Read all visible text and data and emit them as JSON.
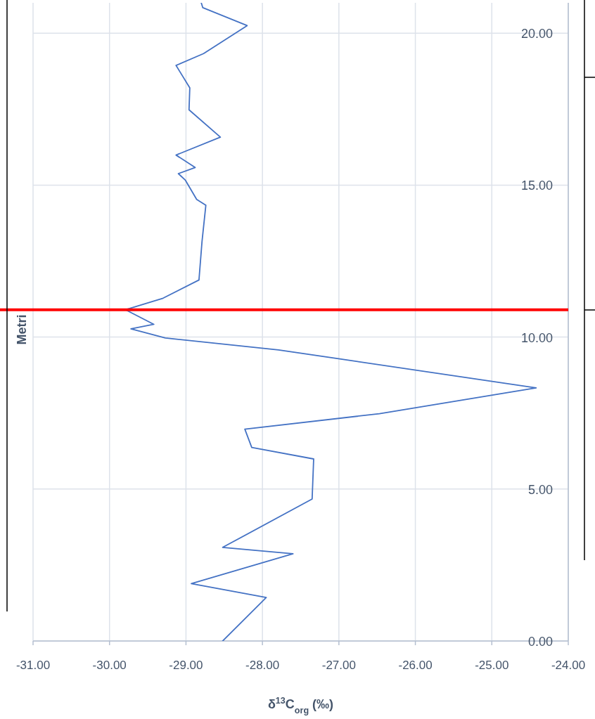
{
  "chart_data": {
    "type": "line",
    "xlabel": "δ$^{13}$C$_{org}$ (‰)",
    "ylabel": "Metri",
    "xlim": [
      -31,
      -24
    ],
    "xticks": [
      {
        "value": -31,
        "label": "-31.00"
      },
      {
        "value": -30,
        "label": "-30.00"
      },
      {
        "value": -29,
        "label": "-29.00"
      },
      {
        "value": -28,
        "label": "-28.00"
      },
      {
        "value": -27,
        "label": "-27.00"
      },
      {
        "value": -26,
        "label": "-26.00"
      },
      {
        "value": -25,
        "label": "-25.00"
      },
      {
        "value": -24,
        "label": "-24.00"
      }
    ],
    "ylim": [
      0,
      21
    ],
    "yticks": [
      {
        "value": 0,
        "label": "0.00"
      },
      {
        "value": 5,
        "label": "5.00"
      },
      {
        "value": 10,
        "label": "10.00"
      },
      {
        "value": 15,
        "label": "15.00"
      },
      {
        "value": 20,
        "label": "20.00"
      }
    ],
    "grid": true,
    "marker": "none",
    "line_style": "solid",
    "series": [
      {
        "color": "#4472c4",
        "x": [
          -28.52,
          -27.95,
          -28.93,
          -27.6,
          -28.52,
          -27.35,
          -27.33,
          -28.14,
          -28.23,
          -26.47,
          -24.42,
          -27.79,
          -29.27,
          -29.72,
          -29.42,
          -29.79,
          -29.3,
          -28.83,
          -28.79,
          -28.74,
          -28.86,
          -29.01,
          -29.1,
          -28.88,
          -29.13,
          -28.55,
          -28.96,
          -28.95,
          -29.13,
          -28.77,
          -28.2,
          -28.78,
          -28.8
        ],
        "values": [
          0,
          1.43,
          1.89,
          2.87,
          3.08,
          4.67,
          5.99,
          6.37,
          6.97,
          7.48,
          8.33,
          9.58,
          9.97,
          10.27,
          10.42,
          10.9,
          11.28,
          11.88,
          13.15,
          14.34,
          14.53,
          15.17,
          15.38,
          15.58,
          15.99,
          16.58,
          17.48,
          18.2,
          18.94,
          19.33,
          20.25,
          20.84,
          21
        ]
      }
    ],
    "ref_lines": [
      {
        "axis": "y",
        "value": 10.9,
        "color": "#ff0000",
        "line_style": "solid"
      }
    ]
  }
}
